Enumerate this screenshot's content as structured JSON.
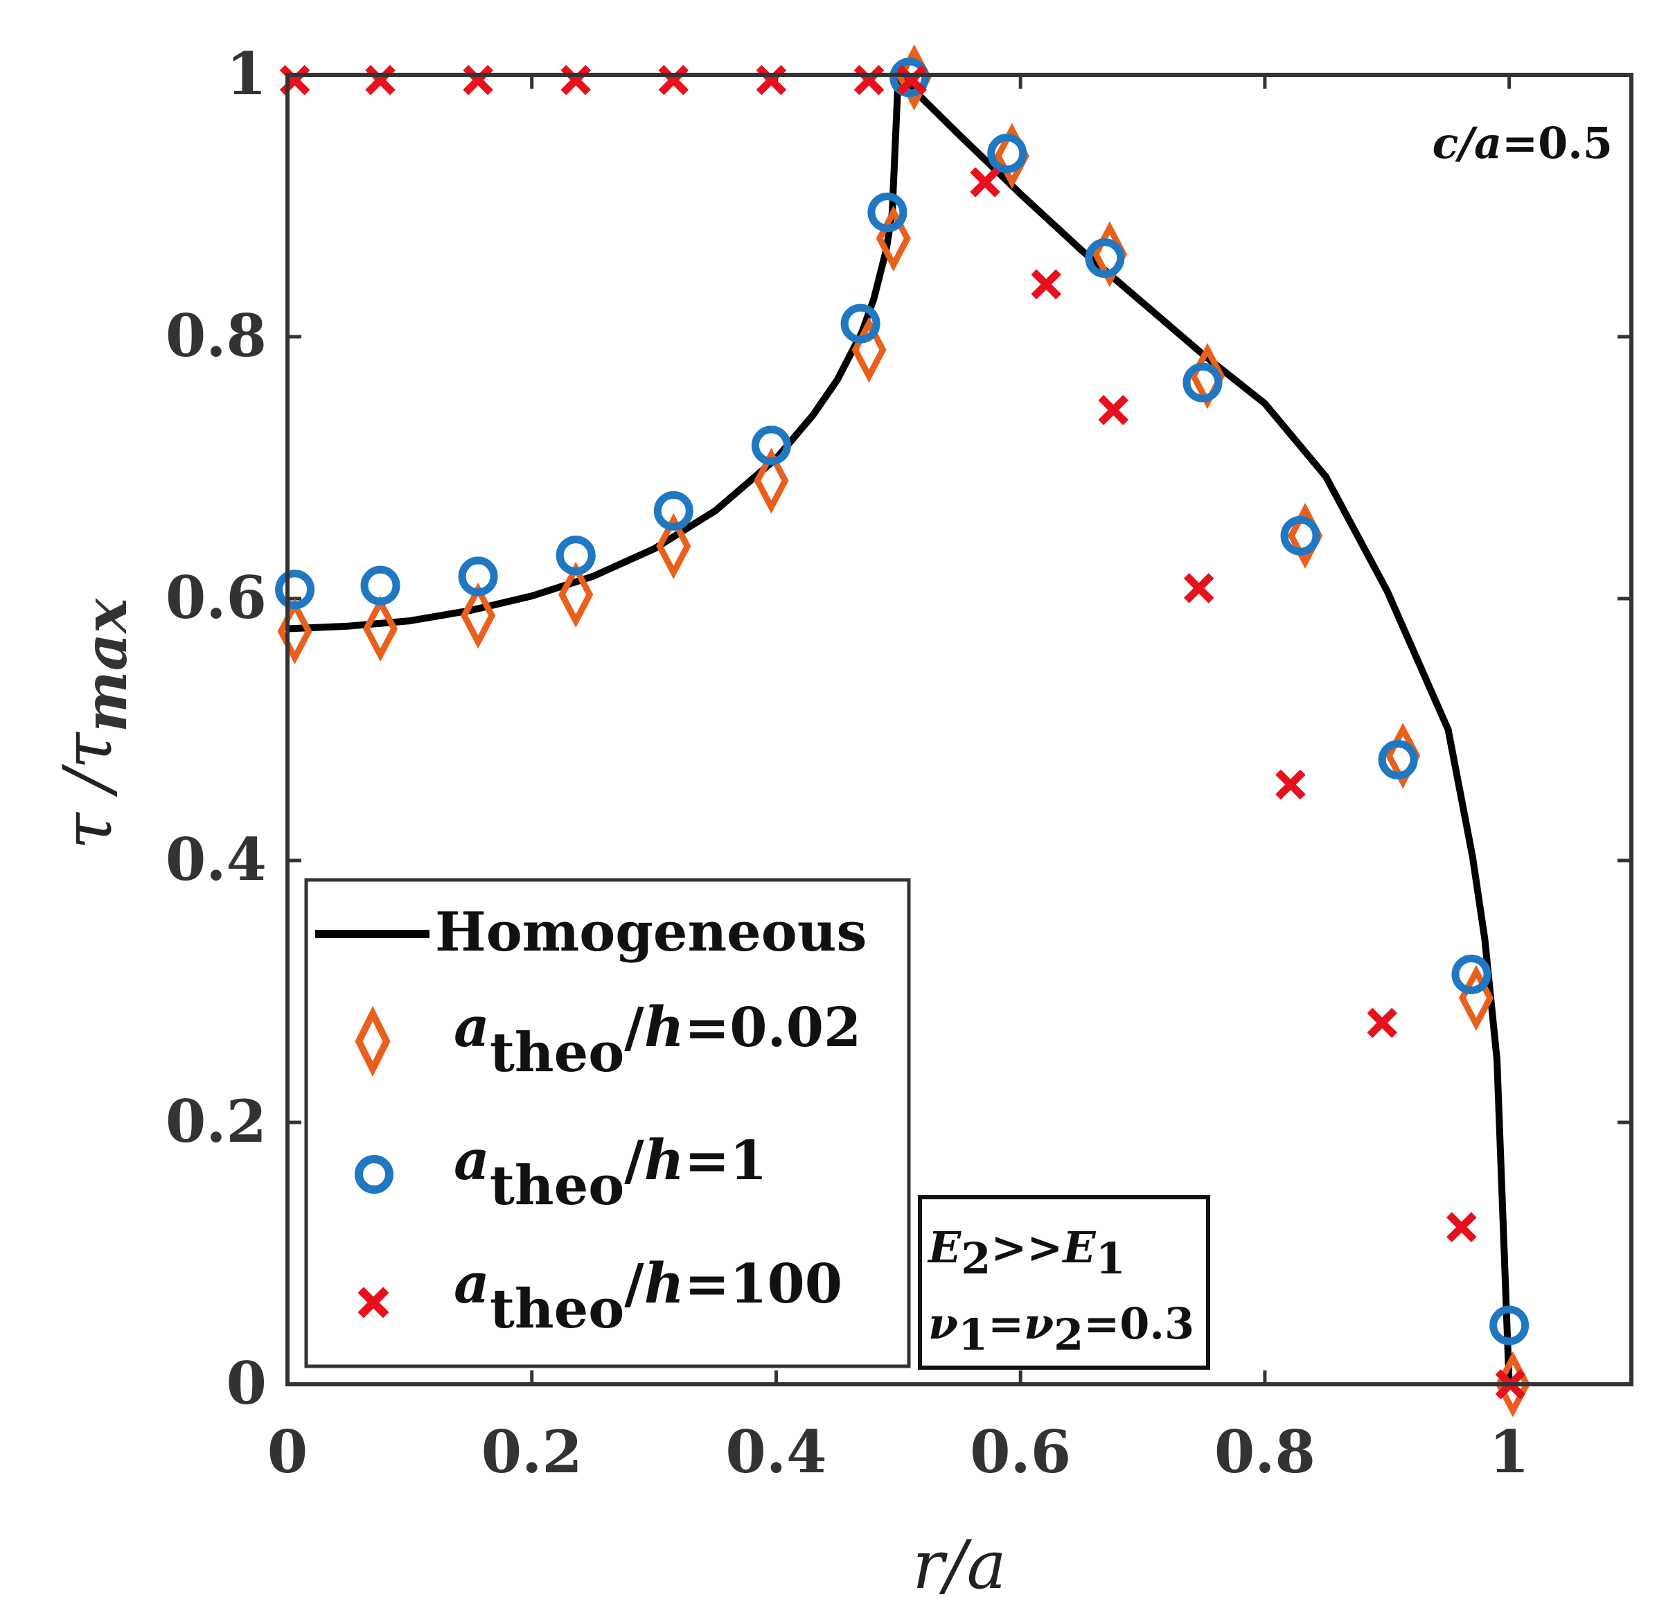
{
  "chart_data": {
    "type": "line+scatter",
    "title": "",
    "xlabel": "r/a",
    "ylabel": "τ / τmax",
    "ylabel_parts": {
      "main": "τ /τ",
      "sub": "max"
    },
    "xlim": [
      0,
      1.1
    ],
    "ylim": [
      0,
      1
    ],
    "xticks": [
      0,
      0.2,
      0.4,
      0.6,
      0.8,
      1
    ],
    "xtick_labels": [
      "0",
      "0.2",
      "0.4",
      "0.6",
      "0.8",
      "1"
    ],
    "yticks": [
      0,
      0.2,
      0.4,
      0.6,
      0.8,
      1
    ],
    "ytick_labels": [
      "0",
      "0.2",
      "0.4",
      "0.6",
      "0.8",
      "1"
    ],
    "corner_annotation": {
      "italic": "c/a",
      "rest": "=0.5"
    },
    "material_box": {
      "line1": {
        "a": "E",
        "a_sub": "2",
        "mid": ">>",
        "b": "E",
        "b_sub": "1"
      },
      "line2": {
        "a": "ν",
        "a_sub": "1",
        "mid": "=",
        "b": "ν",
        "b_sub": "2",
        "rest": "=0.3"
      }
    },
    "legend_position": "bottom-left",
    "series": [
      {
        "name": "Homogeneous",
        "legend_label": "Homogeneous",
        "style": "line",
        "color": "#000000",
        "x": [
          0,
          0.05,
          0.1,
          0.15,
          0.2,
          0.25,
          0.3,
          0.35,
          0.4,
          0.43,
          0.45,
          0.47,
          0.48,
          0.49,
          0.495,
          0.5,
          0.55,
          0.6,
          0.65,
          0.7,
          0.75,
          0.8,
          0.85,
          0.9,
          0.95,
          0.97,
          0.98,
          0.99,
          1.0
        ],
        "y": [
          0.577,
          0.579,
          0.583,
          0.591,
          0.602,
          0.617,
          0.638,
          0.667,
          0.707,
          0.74,
          0.767,
          0.803,
          0.829,
          0.866,
          0.895,
          1.0,
          0.954,
          0.909,
          0.866,
          0.826,
          0.786,
          0.749,
          0.693,
          0.606,
          0.5,
          0.403,
          0.34,
          0.248,
          0.0
        ]
      },
      {
        "name": "a_theo/h=0.02",
        "legend_italic": "a",
        "legend_sub": "theo",
        "legend_rest": "/",
        "legend_italic2": "h",
        "legend_value": "=0.02",
        "style": "diamond",
        "color": "#E8601C",
        "x": [
          0.006,
          0.076,
          0.156,
          0.236,
          0.316,
          0.396,
          0.476,
          0.496,
          0.513,
          0.593,
          0.673,
          0.753,
          0.833,
          0.913,
          0.973,
          1.003
        ],
        "y": [
          0.575,
          0.577,
          0.587,
          0.603,
          0.64,
          0.69,
          0.79,
          0.875,
          0.998,
          0.938,
          0.863,
          0.77,
          0.648,
          0.48,
          0.295,
          0.0
        ]
      },
      {
        "name": "a_theo/h=1",
        "legend_italic": "a",
        "legend_sub": "theo",
        "legend_rest": "/",
        "legend_italic2": "h",
        "legend_value": "=1",
        "style": "circle",
        "color": "#1F78C1",
        "x": [
          0.006,
          0.076,
          0.156,
          0.236,
          0.316,
          0.396,
          0.469,
          0.491,
          0.509,
          0.589,
          0.669,
          0.749,
          0.829,
          0.909,
          0.969,
          1.0
        ],
        "y": [
          0.607,
          0.61,
          0.617,
          0.633,
          0.667,
          0.717,
          0.81,
          0.895,
          0.998,
          0.94,
          0.86,
          0.765,
          0.648,
          0.477,
          0.313,
          0.045
        ]
      },
      {
        "name": "a_theo/h=100",
        "legend_italic": "a",
        "legend_sub": "theo",
        "legend_rest": "/",
        "legend_italic2": "h",
        "legend_value": "=100",
        "style": "x",
        "color": "#E8101C",
        "x": [
          0.006,
          0.076,
          0.156,
          0.236,
          0.316,
          0.396,
          0.476,
          0.511,
          0.571,
          0.621,
          0.676,
          0.746,
          0.821,
          0.896,
          0.961,
          1.001
        ],
        "y": [
          0.996,
          0.996,
          0.996,
          0.996,
          0.996,
          0.996,
          0.996,
          0.996,
          0.918,
          0.84,
          0.744,
          0.608,
          0.458,
          0.276,
          0.12,
          0.0
        ]
      }
    ]
  }
}
